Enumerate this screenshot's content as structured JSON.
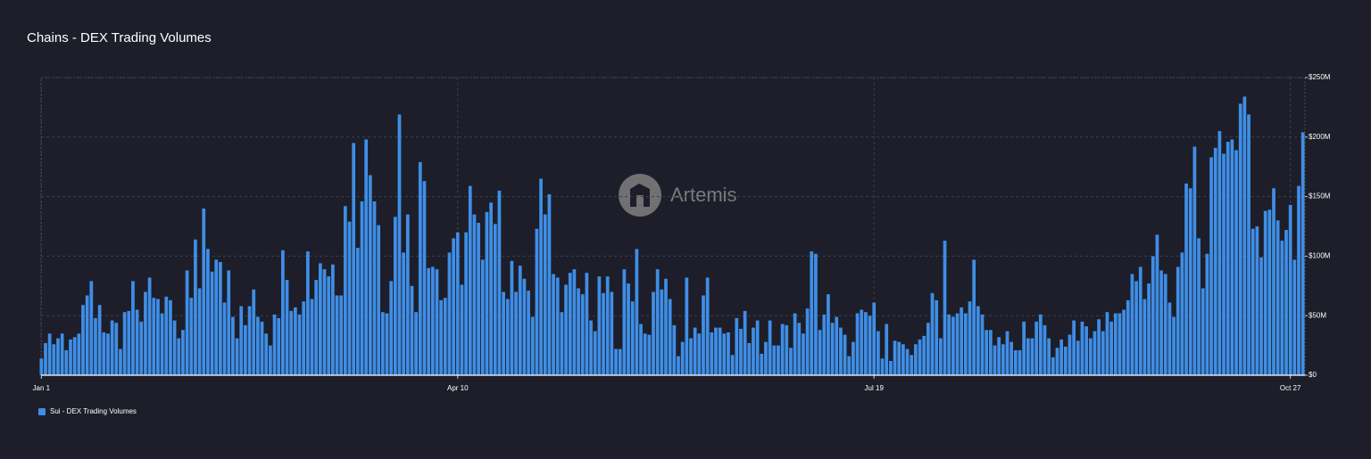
{
  "chart_data": {
    "type": "bar",
    "title": "Chains - DEX Trading Volumes",
    "watermark": "Artemis",
    "categories": [
      "Jan 1",
      null,
      null,
      null,
      null,
      null,
      null,
      null,
      null,
      null,
      null,
      null,
      null,
      null,
      null,
      null,
      null,
      null,
      null,
      null,
      null,
      null,
      null,
      null,
      null,
      null,
      null,
      null,
      null,
      null,
      null,
      null,
      null,
      null,
      null,
      null,
      null,
      null,
      null,
      null,
      null,
      null,
      null,
      null,
      null,
      null,
      null,
      null,
      null,
      null,
      null,
      null,
      null,
      null,
      null,
      null,
      null,
      null,
      null,
      null,
      null,
      null,
      null,
      null,
      null,
      null,
      null,
      null,
      null,
      null,
      null,
      null,
      null,
      null,
      null,
      null,
      null,
      null,
      null,
      null,
      null,
      null,
      null,
      null,
      null,
      null,
      null,
      null,
      null,
      null,
      null,
      null,
      null,
      null,
      null,
      null,
      null,
      null,
      null,
      null,
      "Apr 10",
      null,
      null,
      null,
      null,
      null,
      null,
      null,
      null,
      null,
      null,
      null,
      null,
      null,
      null,
      null,
      null,
      null,
      null,
      null,
      null,
      null,
      null,
      null,
      null,
      null,
      null,
      null,
      null,
      null,
      null,
      null,
      null,
      null,
      null,
      null,
      null,
      null,
      null,
      null,
      null,
      null,
      null,
      null,
      null,
      null,
      null,
      null,
      null,
      null,
      null,
      null,
      null,
      null,
      null,
      null,
      null,
      null,
      null,
      null,
      null,
      null,
      null,
      null,
      null,
      null,
      null,
      null,
      null,
      null,
      null,
      null,
      null,
      null,
      null,
      null,
      null,
      null,
      null,
      null,
      null,
      null,
      null,
      null,
      null,
      null,
      null,
      null,
      null,
      null,
      null,
      null,
      null,
      null,
      null,
      null,
      null,
      null,
      null,
      null,
      "Jul 19",
      null,
      null,
      null,
      null,
      null,
      null,
      null,
      null,
      null,
      null,
      null,
      null,
      null,
      null,
      null,
      null,
      null,
      null,
      null,
      null,
      null,
      null,
      null,
      null,
      null,
      null,
      null,
      null,
      null,
      null,
      null,
      null,
      null,
      null,
      null,
      null,
      null,
      null,
      null,
      null,
      null,
      null,
      null,
      null,
      null,
      null,
      null,
      null,
      null,
      null,
      null,
      null,
      null,
      null,
      null,
      null,
      null,
      null,
      null,
      null,
      null,
      null,
      null,
      null,
      null,
      null,
      null,
      null,
      null,
      null,
      null,
      null,
      null,
      null,
      null,
      null,
      null,
      null,
      null,
      null,
      null,
      null,
      null,
      null,
      null,
      null,
      null,
      null,
      null,
      null,
      null,
      null,
      null,
      null,
      null,
      null,
      null,
      null,
      null,
      "Oct 27",
      null,
      null,
      null
    ],
    "series": [
      {
        "name": "Sui - DEX Trading Volumes",
        "color": "#3f8ee6",
        "values": [
          14,
          27,
          35,
          26,
          31,
          35,
          21,
          30,
          32,
          35,
          59,
          67,
          79,
          48,
          59,
          36,
          35,
          46,
          44,
          22,
          53,
          54,
          79,
          55,
          45,
          70,
          82,
          65,
          64,
          52,
          66,
          63,
          46,
          31,
          38,
          88,
          65,
          114,
          73,
          140,
          106,
          87,
          97,
          95,
          61,
          88,
          49,
          31,
          58,
          42,
          58,
          72,
          49,
          45,
          35,
          25,
          51,
          48,
          105,
          80,
          54,
          57,
          51,
          62,
          104,
          64,
          80,
          94,
          89,
          83,
          93,
          67,
          67,
          142,
          129,
          195,
          107,
          146,
          198,
          168,
          146,
          126,
          53,
          52,
          79,
          133,
          219,
          103,
          135,
          75,
          53,
          179,
          163,
          90,
          91,
          89,
          63,
          65,
          103,
          115,
          120,
          76,
          120,
          159,
          135,
          128,
          97,
          137,
          145,
          127,
          155,
          70,
          64,
          96,
          70,
          92,
          81,
          71,
          49,
          123,
          165,
          135,
          152,
          85,
          82,
          53,
          76,
          86,
          89,
          73,
          68,
          86,
          46,
          37,
          83,
          69,
          83,
          70,
          22,
          22,
          89,
          77,
          62,
          106,
          43,
          35,
          34,
          70,
          89,
          72,
          81,
          64,
          42,
          16,
          28,
          82,
          31,
          40,
          35,
          67,
          82,
          36,
          40,
          40,
          35,
          36,
          17,
          48,
          39,
          54,
          27,
          40,
          46,
          18,
          28,
          46,
          25,
          25,
          43,
          42,
          23,
          52,
          44,
          35,
          56,
          104,
          102,
          38,
          51,
          68,
          44,
          49,
          40,
          34,
          16,
          28,
          52,
          55,
          53,
          50,
          61,
          37,
          14,
          43,
          12,
          29,
          28,
          26,
          22,
          17,
          26,
          30,
          33,
          44,
          69,
          63,
          31,
          113,
          51,
          49,
          52,
          57,
          52,
          62,
          97,
          58,
          51,
          38,
          38,
          25,
          32,
          26,
          37,
          28,
          21,
          21,
          45,
          31,
          31,
          45,
          51,
          42,
          31,
          15,
          23,
          30,
          24,
          34,
          46,
          29,
          45,
          41,
          31,
          37,
          47,
          37,
          53,
          45,
          52,
          52,
          55,
          63,
          85,
          79,
          91,
          64,
          77,
          100,
          118,
          88,
          85,
          61,
          49,
          91,
          103,
          161,
          157,
          192,
          115,
          73,
          102,
          183,
          191,
          205,
          186,
          196,
          198,
          189,
          228,
          234,
          219,
          123,
          125,
          99,
          138,
          139,
          157,
          130,
          113,
          122,
          143,
          97,
          159,
          204
        ]
      }
    ],
    "ylim": [
      0,
      250
    ],
    "yticks": [
      {
        "value": 0,
        "label": "$0"
      },
      {
        "value": 50,
        "label": "$50M"
      },
      {
        "value": 100,
        "label": "$100M"
      },
      {
        "value": 150,
        "label": "$150M"
      },
      {
        "value": 200,
        "label": "$200M"
      },
      {
        "value": 250,
        "label": "$250M"
      }
    ],
    "grid": true,
    "legend": "bottom-left"
  }
}
